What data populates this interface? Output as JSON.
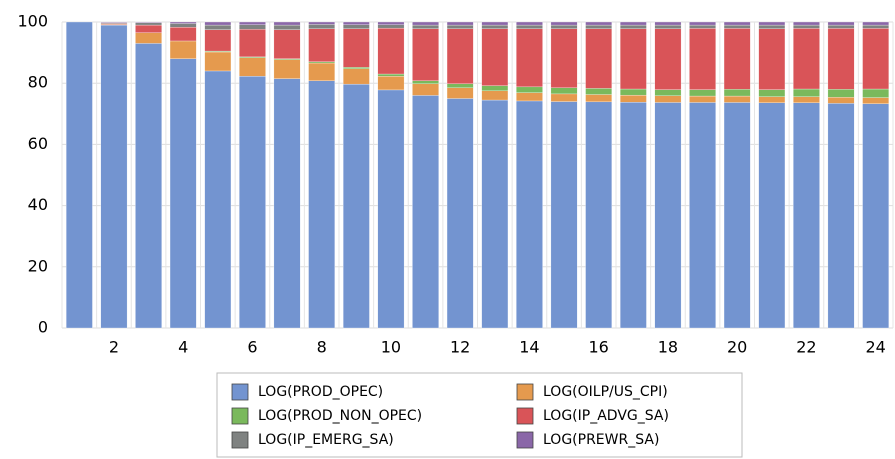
{
  "chart_data": {
    "type": "stacked_bar",
    "categories": [
      null,
      "2",
      null,
      "4",
      null,
      "6",
      null,
      "8",
      null,
      "10",
      null,
      "12",
      null,
      "14",
      null,
      "16",
      null,
      "18",
      null,
      "20",
      null,
      "22",
      null,
      "24"
    ],
    "ylim": [
      0,
      100
    ],
    "yticks": [
      0,
      20,
      40,
      60,
      80,
      100
    ],
    "grid": true,
    "series": [
      {
        "name": "LOG(PROD_OPEC)",
        "color": "#7394d0",
        "values": [
          100,
          99,
          93,
          88,
          84,
          82.3,
          81.5,
          80.8,
          79.7,
          77.8,
          76,
          75,
          74.5,
          74.2,
          74,
          73.9,
          73.8,
          73.7,
          73.7,
          73.7,
          73.6,
          73.6,
          73.4,
          73.3
        ]
      },
      {
        "name": "LOG(OILP/US_CPI)",
        "color": "#e59a4e",
        "values": [
          0,
          0.2,
          3.5,
          5.8,
          6.2,
          6,
          6.2,
          5.8,
          5,
          4.5,
          3.8,
          3.5,
          3,
          2.7,
          2.5,
          2.4,
          2.3,
          2.2,
          2.1,
          2.1,
          2,
          2,
          2,
          2
        ]
      },
      {
        "name": "LOG(PROD_NON_OPEC)",
        "color": "#7ab95c",
        "values": [
          0,
          0,
          0,
          0,
          0.3,
          0.3,
          0.3,
          0.4,
          0.5,
          0.7,
          1,
          1.3,
          1.7,
          1.9,
          2,
          2,
          2,
          2,
          2.1,
          2.2,
          2.3,
          2.5,
          2.6,
          2.8
        ]
      },
      {
        "name": "LOG(IP_ADVG_SA)",
        "color": "#d95458",
        "values": [
          0,
          0.3,
          2.5,
          4.5,
          7,
          9,
          9.5,
          10.8,
          12.6,
          15,
          17,
          18,
          18.6,
          19,
          19.3,
          19.5,
          19.7,
          19.9,
          20,
          19.9,
          19.9,
          19.8,
          19.9,
          19.8
        ]
      },
      {
        "name": "LOG(IP_EMERG_SA)",
        "color": "#7f8281",
        "values": [
          0,
          0.3,
          0.8,
          1.2,
          1.5,
          1.5,
          1.5,
          1.4,
          1.3,
          1.1,
          1.2,
          1.2,
          1.2,
          1.2,
          1.2,
          1.2,
          1.2,
          1.2,
          1.1,
          1.1,
          1.2,
          1.1,
          1.1,
          1.1
        ]
      },
      {
        "name": "LOG(PREWR_SA)",
        "color": "#8a67a8",
        "values": [
          0,
          0.2,
          0.2,
          0.5,
          1,
          0.9,
          1,
          0.8,
          0.9,
          0.9,
          1,
          1,
          1,
          1,
          1,
          1,
          1,
          1,
          1,
          1,
          1,
          1,
          1,
          1
        ]
      }
    ]
  }
}
